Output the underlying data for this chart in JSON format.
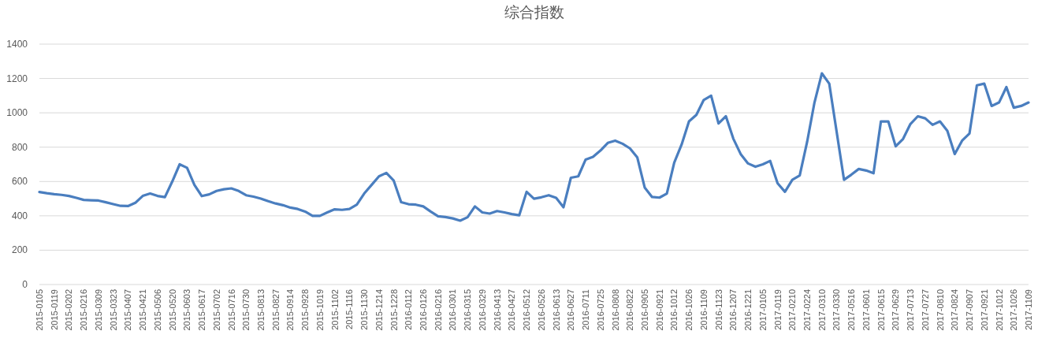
{
  "chart_data": {
    "type": "line",
    "title": "综合指数",
    "categories": [
      "2015-0105",
      null,
      "2015-0119",
      null,
      "2015-0202",
      null,
      "2015-0216",
      null,
      "2015-0309",
      null,
      "2015-0323",
      null,
      "2015-0407",
      null,
      "2015-0421",
      null,
      "2015-0506",
      null,
      "2015-0520",
      null,
      "2015-0603",
      null,
      "2015-0617",
      null,
      "2015-0702",
      null,
      "2015-0716",
      null,
      "2015-0730",
      null,
      "2015-0813",
      null,
      "2015-0827",
      null,
      "2015-0914",
      null,
      "2015-0928",
      null,
      "2015-1019",
      null,
      "2015-1102",
      null,
      "2015-1116",
      null,
      "2015-1130",
      null,
      "2015-1214",
      null,
      "2015-1228",
      null,
      "2016-0112",
      null,
      "2016-0126",
      null,
      "2016-0216",
      null,
      "2016-0301",
      null,
      "2016-0315",
      null,
      "2016-0329",
      null,
      "2016-0413",
      null,
      "2016-0427",
      null,
      "2016-0512",
      null,
      "2016-0526",
      null,
      "2016-0613",
      null,
      "2016-0627",
      null,
      "2016-0711",
      null,
      "2016-0725",
      null,
      "2016-0808",
      null,
      "2016-0822",
      null,
      "2016-0905",
      null,
      "2016-0921",
      null,
      "2016-1012",
      null,
      "2016-1026",
      null,
      "2016-1109",
      null,
      "2016-1123",
      null,
      "2016-1207",
      null,
      "2016-1221",
      null,
      "2017-0105",
      null,
      "2017-0119",
      null,
      "2017-0210",
      null,
      "2017-0224",
      null,
      "2017-0310",
      null,
      "2017-0330",
      null,
      "2017-0516",
      null,
      "2017-0601",
      null,
      "2017-0615",
      null,
      "2017-0629",
      null,
      "2017-0713",
      null,
      "2017-0727",
      null,
      "2017-0810",
      null,
      "2017-0824",
      null,
      "2017-0907",
      null,
      "2017-0921",
      null,
      "2017-1012",
      null,
      "2017-1026",
      null,
      "2017-1109"
    ],
    "values": [
      539,
      532,
      526,
      522,
      516,
      505,
      493,
      491,
      489,
      479,
      468,
      458,
      457,
      476,
      516,
      530,
      516,
      509,
      600,
      700,
      680,
      580,
      515,
      525,
      545,
      555,
      560,
      545,
      520,
      512,
      500,
      485,
      472,
      462,
      448,
      440,
      425,
      400,
      400,
      420,
      438,
      435,
      440,
      465,
      530,
      580,
      630,
      650,
      605,
      480,
      468,
      465,
      455,
      425,
      398,
      393,
      385,
      372,
      392,
      455,
      420,
      413,
      428,
      420,
      410,
      403,
      540,
      500,
      508,
      520,
      505,
      450,
      622,
      630,
      728,
      744,
      780,
      825,
      838,
      820,
      793,
      740,
      565,
      510,
      506,
      530,
      710,
      815,
      950,
      988,
      1075,
      1100,
      938,
      980,
      850,
      760,
      705,
      686,
      700,
      720,
      590,
      540,
      610,
      635,
      830,
      1060,
      1230,
      1170,
      890,
      610,
      640,
      673,
      664,
      648,
      950,
      950,
      805,
      848,
      935,
      980,
      968,
      930,
      950,
      895,
      760,
      838,
      880,
      1160,
      1170,
      1040,
      1060,
      1150,
      1030,
      1040,
      1060
    ],
    "color": "#4a7ebf",
    "ylim": [
      0,
      1400
    ],
    "yticks": [
      0,
      200,
      400,
      600,
      800,
      1000,
      1200,
      1400
    ],
    "grid": "y"
  }
}
